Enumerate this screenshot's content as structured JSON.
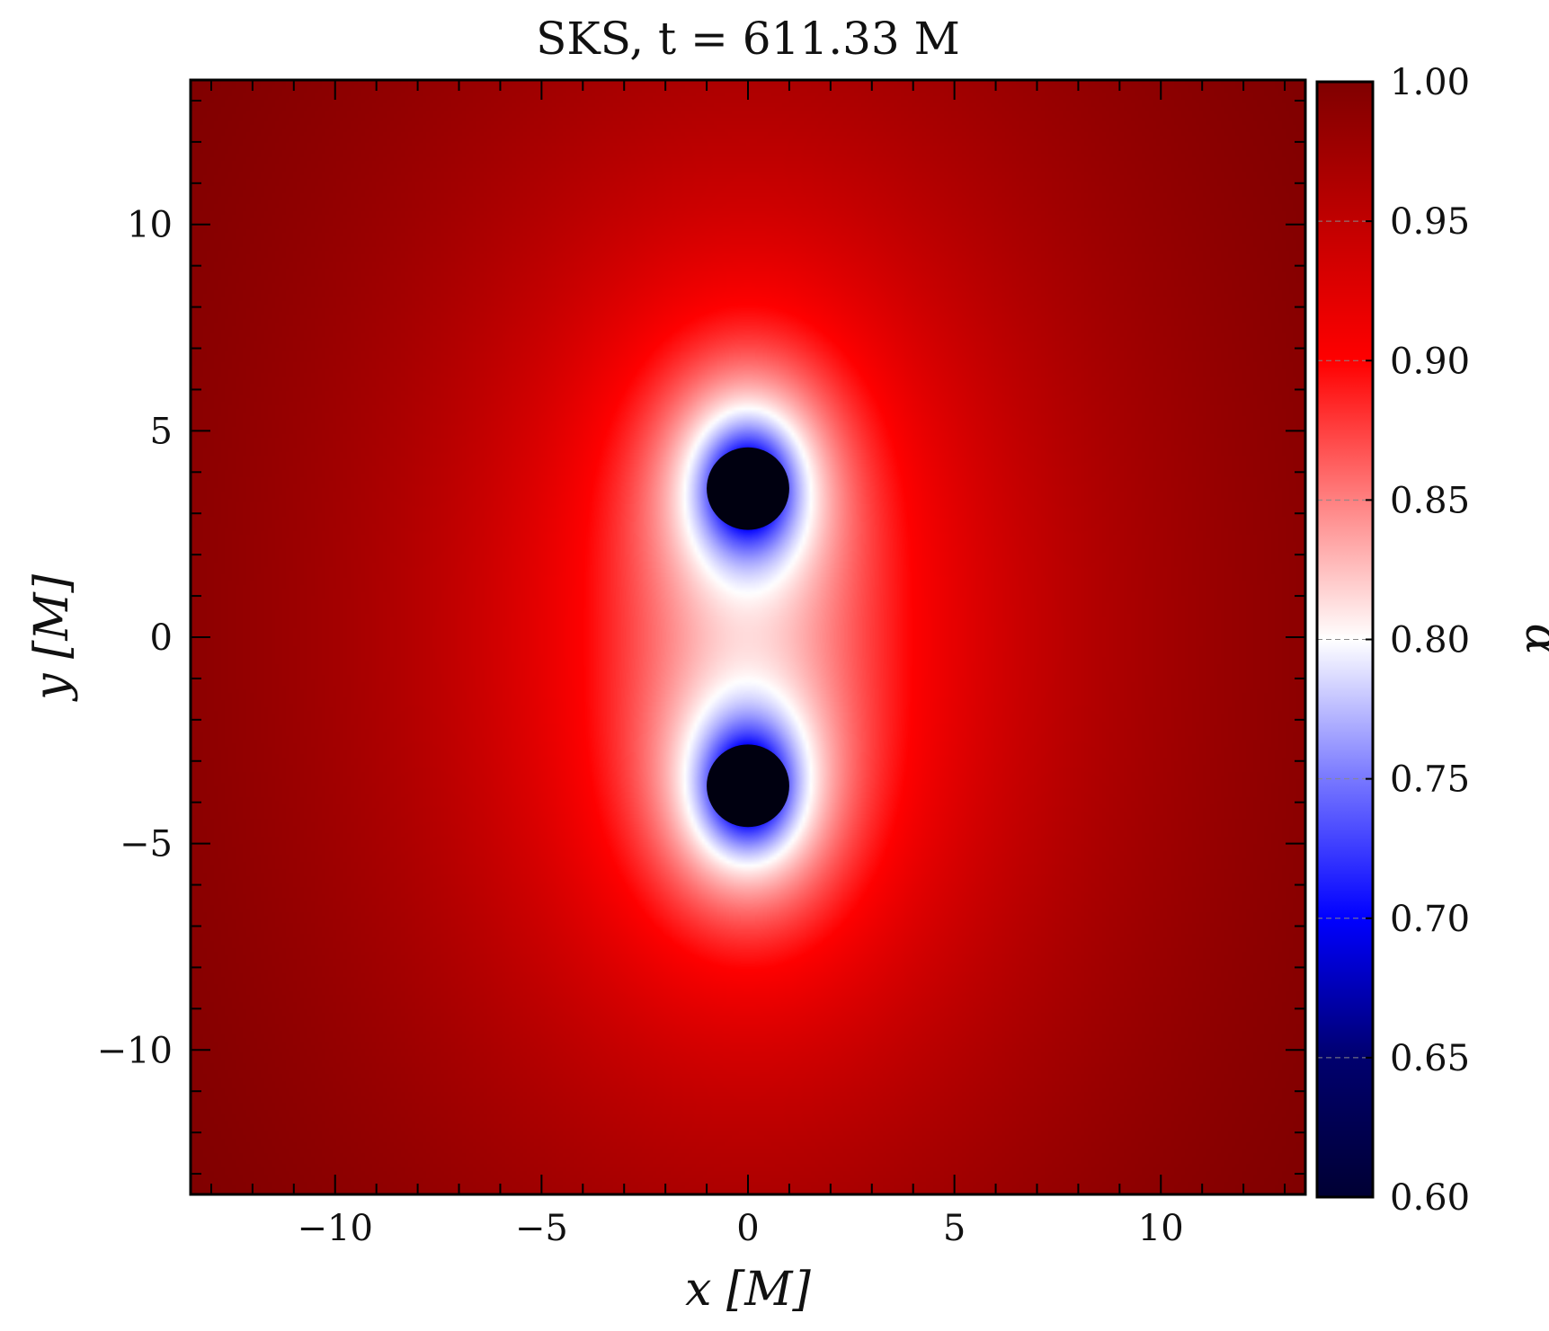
{
  "chart_data": {
    "type": "heatmap",
    "title": "SKS, t = 611.33 M",
    "xlabel": "x [M]",
    "ylabel": "y [M]",
    "colorbar_label": "α",
    "xlim": [
      -13.5,
      13.5
    ],
    "ylim": [
      -13.5,
      13.5
    ],
    "x_ticks": [
      -10,
      -5,
      0,
      5,
      10
    ],
    "y_ticks": [
      -10,
      -5,
      0,
      5,
      10
    ],
    "x_tick_labels": [
      "−10",
      "−5",
      "0",
      "5",
      "10"
    ],
    "y_tick_labels": [
      "−10",
      "−5",
      "0",
      "5",
      "10"
    ],
    "colorbar": {
      "min": 0.6,
      "max": 1.0,
      "ticks": [
        0.6,
        0.65,
        0.7,
        0.75,
        0.8,
        0.85,
        0.9,
        0.95,
        1.0
      ],
      "tick_labels": [
        "0.60",
        "0.65",
        "0.70",
        "0.75",
        "0.80",
        "0.85",
        "0.90",
        "0.95",
        "1.00"
      ],
      "colormap_stops": [
        {
          "value": 0.6,
          "color": "#000033"
        },
        {
          "value": 0.65,
          "color": "#00006e"
        },
        {
          "value": 0.7,
          "color": "#0000ff"
        },
        {
          "value": 0.75,
          "color": "#7878ff"
        },
        {
          "value": 0.8,
          "color": "#ffffff"
        },
        {
          "value": 0.85,
          "color": "#ff8080"
        },
        {
          "value": 0.9,
          "color": "#ff0000"
        },
        {
          "value": 0.95,
          "color": "#c00000"
        },
        {
          "value": 1.0,
          "color": "#800000"
        }
      ]
    },
    "field_model": {
      "masses": [
        {
          "x": 0.0,
          "y": 3.6
        },
        {
          "x": 0.0,
          "y": -3.6
        }
      ],
      "horizons": [
        {
          "x": 0.0,
          "y": 3.6,
          "r": 1.0
        },
        {
          "x": 0.0,
          "y": -3.6,
          "r": 1.0
        }
      ]
    },
    "grid": false,
    "colorbar_position": "right"
  }
}
